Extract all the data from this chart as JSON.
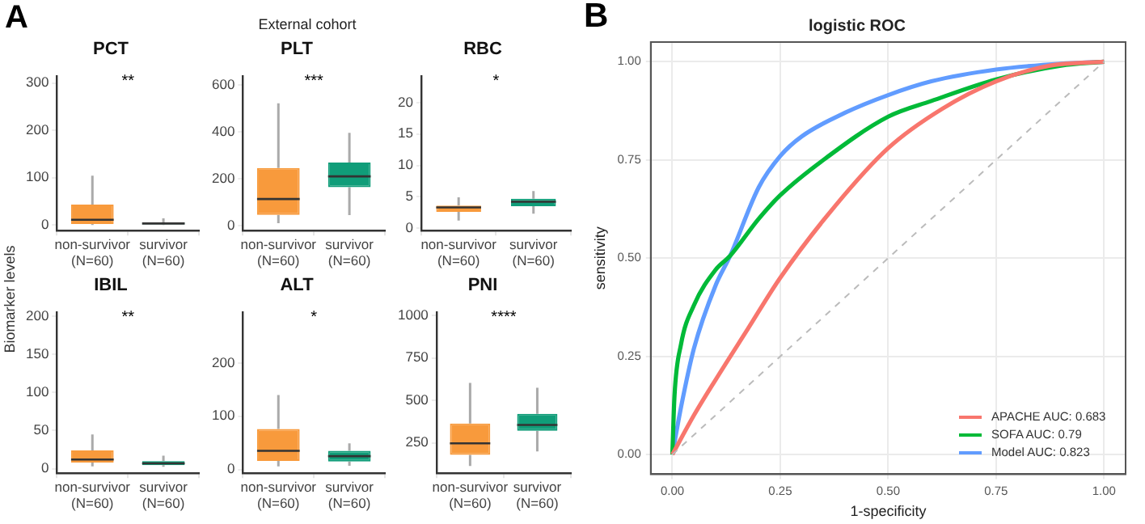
{
  "chart_data": [
    {
      "type": "other",
      "title": "External cohort",
      "ylabel": "Biomarker levels",
      "annotations": [
        "A"
      ]
    },
    {
      "type": "box",
      "title": "PCT",
      "annotations": [
        "**"
      ],
      "categories": [
        "non-survivor\n(N=60)",
        "survivor\n(N=60)"
      ],
      "colors": [
        "#f89a3c",
        "#109d79"
      ],
      "ylim": [
        -12,
        314
      ],
      "yticks": [
        0,
        100,
        200,
        300
      ],
      "boxes": [
        {
          "low": 0,
          "q1": 2,
          "median": 11,
          "q3": 43,
          "high": 104
        },
        {
          "low": 0,
          "q1": 1,
          "median": 3,
          "q3": 5,
          "high": 14
        }
      ]
    },
    {
      "type": "box",
      "title": "PLT",
      "annotations": [
        "***"
      ],
      "categories": [
        "non-survivor\n(N=60)",
        "survivor\n(N=60)"
      ],
      "colors": [
        "#f89a3c",
        "#109d79"
      ],
      "ylim": [
        -22,
        638
      ],
      "yticks": [
        0,
        200,
        400,
        600
      ],
      "boxes": [
        {
          "low": 10,
          "q1": 45,
          "median": 113,
          "q3": 246,
          "high": 523
        },
        {
          "low": 44,
          "q1": 164,
          "median": 210,
          "q3": 269,
          "high": 396
        }
      ]
    },
    {
      "type": "box",
      "title": "RBC",
      "annotations": [
        "*"
      ],
      "categories": [
        "non-survivor\n(N=60)",
        "survivor\n(N=60)"
      ],
      "colors": [
        "#f89a3c",
        "#109d79"
      ],
      "ylim": [
        -0.4,
        24.2
      ],
      "yticks": [
        0,
        5,
        10,
        15,
        20
      ],
      "boxes": [
        {
          "low": 1.2,
          "q1": 2.6,
          "median": 3.3,
          "q3": 3.6,
          "high": 4.9
        },
        {
          "low": 2.3,
          "q1": 3.5,
          "median": 4.2,
          "q3": 4.7,
          "high": 5.9
        }
      ]
    },
    {
      "type": "box",
      "title": "IBIL",
      "annotations": [
        "**"
      ],
      "categories": [
        "non-survivor\n(N=60)",
        "survivor\n(N=60)"
      ],
      "colors": [
        "#f89a3c",
        "#109d79"
      ],
      "ylim": [
        -6,
        205
      ],
      "yticks": [
        0,
        50,
        100,
        150,
        200
      ],
      "boxes": [
        {
          "low": 3,
          "q1": 8,
          "median": 12,
          "q3": 24,
          "high": 45
        },
        {
          "low": 2.5,
          "q1": 4.5,
          "median": 7,
          "q3": 10,
          "high": 17
        }
      ]
    },
    {
      "type": "box",
      "title": "ALT",
      "annotations": [
        "*"
      ],
      "categories": [
        "non-survivor\n(N=60)",
        "survivor\n(N=60)"
      ],
      "colors": [
        "#f89a3c",
        "#109d79"
      ],
      "ylim": [
        -7,
        295
      ],
      "yticks": [
        0,
        100,
        200
      ],
      "boxes": [
        {
          "low": 6,
          "q1": 16,
          "median": 35,
          "q3": 76,
          "high": 140
        },
        {
          "low": 7,
          "q1": 15,
          "median": 25,
          "q3": 35,
          "high": 49
        }
      ]
    },
    {
      "type": "box",
      "title": "PNI",
      "annotations": [
        "****"
      ],
      "categories": [
        "non-survivor\n(N=60)",
        "survivor\n(N=60)"
      ],
      "colors": [
        "#f89a3c",
        "#109d79"
      ],
      "ylim": [
        71,
        1017
      ],
      "yticks": [
        250,
        500,
        750,
        1000
      ],
      "boxes": [
        {
          "low": 114,
          "q1": 179,
          "median": 247,
          "q3": 364,
          "high": 602
        },
        {
          "low": 199,
          "q1": 320,
          "median": 355,
          "q3": 421,
          "high": 574
        }
      ]
    },
    {
      "type": "line",
      "title": "logistic ROC",
      "xlabel": "1-specificity",
      "ylabel": "sensitivity",
      "annotations": [
        "B"
      ],
      "grid": true,
      "legend": "bottom right",
      "marker": "none",
      "xlim": [
        -0.05,
        1.05
      ],
      "ylim": [
        -0.05,
        1.05
      ],
      "xticks": [
        {
          "value": 0,
          "label": "0.00"
        },
        {
          "value": 0.25,
          "label": "0.25"
        },
        {
          "value": 0.5,
          "label": "0.50"
        },
        {
          "value": 0.75,
          "label": "0.75"
        },
        {
          "value": 1,
          "label": "1.00"
        }
      ],
      "yticks": [
        {
          "value": 0,
          "label": "0.00"
        },
        {
          "value": 0.25,
          "label": "0.25"
        },
        {
          "value": 0.5,
          "label": "0.50"
        },
        {
          "value": 0.75,
          "label": "0.75"
        },
        {
          "value": 1,
          "label": "1.00"
        }
      ],
      "series": [
        {
          "color": "#bbbbbb",
          "line_style": "dashed",
          "x": [
            0,
            1
          ],
          "values": [
            0,
            1
          ]
        },
        {
          "name": "APACHE AUC: 0.683",
          "color": "#f8766d",
          "x": [
            0,
            0.05,
            0.1,
            0.175,
            0.25,
            0.375,
            0.5,
            0.625,
            0.75,
            0.875,
            1
          ],
          "values": [
            0,
            0.1,
            0.19,
            0.32,
            0.45,
            0.63,
            0.78,
            0.88,
            0.95,
            0.99,
            1
          ]
        },
        {
          "name": "SOFA AUC: 0.79",
          "color": "#00ba38",
          "x": [
            0,
            0.005,
            0.02,
            0.05,
            0.1,
            0.134,
            0.2,
            0.25,
            0.35,
            0.5,
            0.6,
            0.75,
            0.9,
            1
          ],
          "values": [
            0,
            0.15,
            0.28,
            0.38,
            0.47,
            0.506,
            0.6,
            0.66,
            0.75,
            0.86,
            0.9,
            0.955,
            0.99,
            1
          ]
        },
        {
          "name": "Model AUC: 0.823",
          "color": "#619cff",
          "x": [
            0,
            0.02,
            0.05,
            0.1,
            0.134,
            0.2,
            0.25,
            0.3,
            0.4,
            0.5,
            0.6,
            0.75,
            0.9,
            1
          ],
          "values": [
            0,
            0.12,
            0.27,
            0.43,
            0.506,
            0.68,
            0.76,
            0.81,
            0.87,
            0.915,
            0.95,
            0.98,
            0.995,
            1
          ]
        }
      ]
    }
  ]
}
